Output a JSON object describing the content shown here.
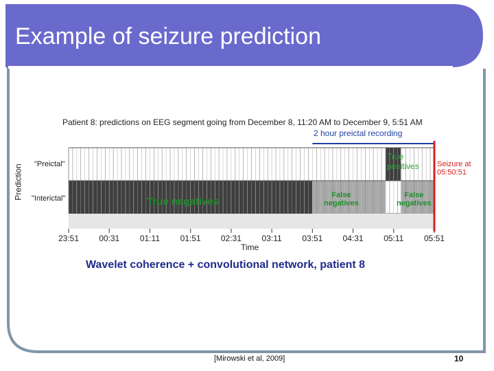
{
  "slide": {
    "title": "Example of seizure prediction",
    "caption": "Wavelet coherence + convolutional network, patient 8",
    "citation": "[Mirowski et al, 2009]",
    "page_number": "10",
    "accent_color": "#6a6acd"
  },
  "figure": {
    "header": "Patient 8: predictions on EEG segment going from December 8, 11:20 AM to December 9, 5:51 AM",
    "preictal_span_label": "2 hour preictal recording",
    "seizure_label_line1": "Seizure at",
    "seizure_label_line2": "05:50:51",
    "y_axis_title": "Prediction",
    "row_labels": [
      "\"Preictal\"",
      "\"Interictal\""
    ],
    "annotations": {
      "true_positives_line1": "True",
      "true_positives_line2": "positives",
      "true_negatives": "True negatives",
      "false_negatives_1_line1": "False",
      "false_negatives_1_line2": "negatives",
      "false_negatives_2_line1": "False",
      "false_negatives_2_line2": "negatives"
    },
    "x_axis_title": "Time"
  },
  "chart_data": {
    "type": "heatmap",
    "xlabel": "Time",
    "ylabel": "Prediction",
    "categories_y": [
      "\"Preictal\"",
      "\"Interictal\""
    ],
    "x_ticks": [
      "23:51",
      "00:31",
      "01:11",
      "01:51",
      "02:31",
      "03:11",
      "03:51",
      "04:31",
      "05:11",
      "05:51"
    ],
    "x_range_hours": [
      0,
      6
    ],
    "segments": [
      {
        "start_h": 0.0,
        "end_h": 4.0,
        "prediction": "\"Interictal\"",
        "label": "True negatives"
      },
      {
        "start_h": 4.0,
        "end_h": 5.2,
        "prediction": "\"Interictal\"",
        "label": "False negatives"
      },
      {
        "start_h": 5.2,
        "end_h": 5.45,
        "prediction": "\"Preictal\"",
        "label": "True positives"
      },
      {
        "start_h": 5.45,
        "end_h": 6.0,
        "prediction": "\"Interictal\"",
        "label": "False negatives"
      }
    ],
    "preictal_window_h": [
      4.0,
      6.0
    ],
    "seizure_time": "05:50:51"
  }
}
